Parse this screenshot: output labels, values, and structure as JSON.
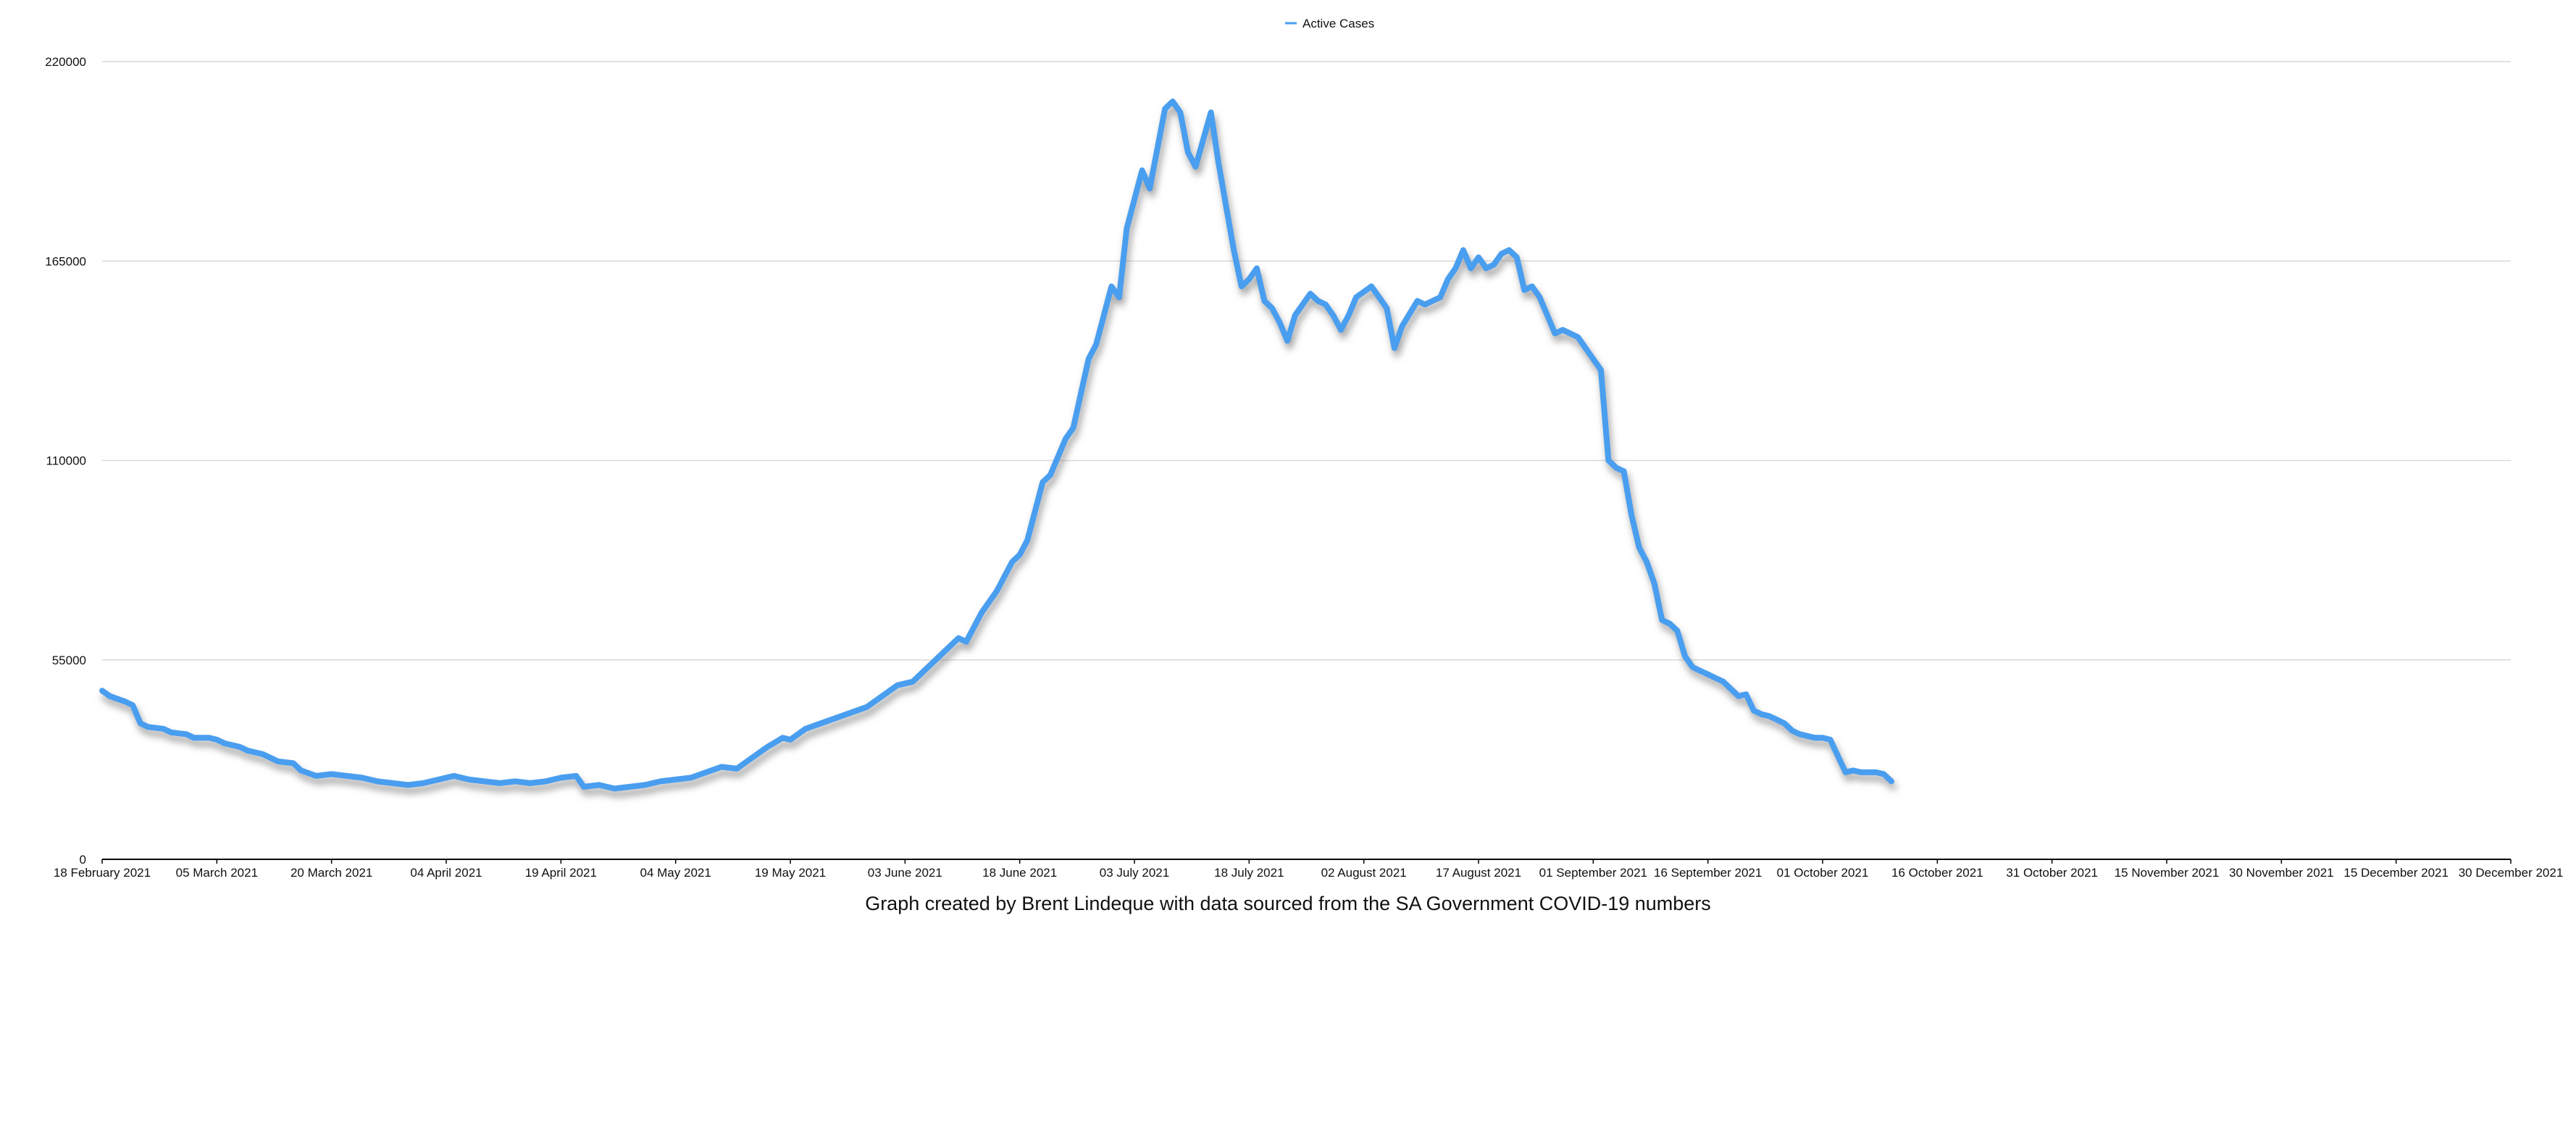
{
  "caption": "Graph created by Brent Lindeque with data sourced from the SA Government COVID-19 numbers",
  "colors": {
    "series": "#4a9eef",
    "grid": "#d9d9d9",
    "axis": "#000000",
    "shadow": "#9a9a9a"
  },
  "chart_data": {
    "type": "line",
    "title": "",
    "xlabel": "",
    "ylabel": "",
    "legend": {
      "position": "top-center",
      "entries": [
        "Active Cases"
      ]
    },
    "grid": true,
    "x_type": "date",
    "xlim": [
      "2021-02-18",
      "2021-12-30"
    ],
    "ylim": [
      0,
      220000
    ],
    "y_ticks": [
      0,
      55000,
      110000,
      165000,
      220000
    ],
    "x_ticks": [
      {
        "date": "2021-02-18",
        "label": "18 February 2021"
      },
      {
        "date": "2021-03-05",
        "label": "05 March 2021"
      },
      {
        "date": "2021-03-20",
        "label": "20 March 2021"
      },
      {
        "date": "2021-04-04",
        "label": "04 April 2021"
      },
      {
        "date": "2021-04-19",
        "label": "19 April 2021"
      },
      {
        "date": "2021-05-04",
        "label": "04 May 2021"
      },
      {
        "date": "2021-05-19",
        "label": "19 May 2021"
      },
      {
        "date": "2021-06-03",
        "label": "03 June 2021"
      },
      {
        "date": "2021-06-18",
        "label": "18 June 2021"
      },
      {
        "date": "2021-07-03",
        "label": "03 July 2021"
      },
      {
        "date": "2021-07-18",
        "label": "18 July 2021"
      },
      {
        "date": "2021-08-02",
        "label": "02 August 2021"
      },
      {
        "date": "2021-08-17",
        "label": "17 August 2021"
      },
      {
        "date": "2021-09-01",
        "label": "01 September 2021"
      },
      {
        "date": "2021-09-16",
        "label": "16 September 2021"
      },
      {
        "date": "2021-10-01",
        "label": "01 October 2021"
      },
      {
        "date": "2021-10-16",
        "label": "16 October 2021"
      },
      {
        "date": "2021-10-31",
        "label": "31 October 2021"
      },
      {
        "date": "2021-11-15",
        "label": "15 November 2021"
      },
      {
        "date": "2021-11-30",
        "label": "30 November 2021"
      },
      {
        "date": "2021-12-15",
        "label": "15 December 2021"
      },
      {
        "date": "2021-12-30",
        "label": "30 December 2021"
      }
    ],
    "series": [
      {
        "name": "Active Cases",
        "points": [
          [
            "2021-02-18",
            46500
          ],
          [
            "2021-02-19",
            45000
          ],
          [
            "2021-02-21",
            43500
          ],
          [
            "2021-02-22",
            42500
          ],
          [
            "2021-02-23",
            37500
          ],
          [
            "2021-02-24",
            36500
          ],
          [
            "2021-02-26",
            36000
          ],
          [
            "2021-02-27",
            35000
          ],
          [
            "2021-03-01",
            34500
          ],
          [
            "2021-03-02",
            33500
          ],
          [
            "2021-03-04",
            33500
          ],
          [
            "2021-03-05",
            33000
          ],
          [
            "2021-03-06",
            32000
          ],
          [
            "2021-03-08",
            31000
          ],
          [
            "2021-03-09",
            30000
          ],
          [
            "2021-03-11",
            29000
          ],
          [
            "2021-03-13",
            27000
          ],
          [
            "2021-03-15",
            26500
          ],
          [
            "2021-03-16",
            24500
          ],
          [
            "2021-03-18",
            23000
          ],
          [
            "2021-03-20",
            23500
          ],
          [
            "2021-03-22",
            23000
          ],
          [
            "2021-03-24",
            22500
          ],
          [
            "2021-03-26",
            21500
          ],
          [
            "2021-03-28",
            21000
          ],
          [
            "2021-03-30",
            20500
          ],
          [
            "2021-04-01",
            21000
          ],
          [
            "2021-04-03",
            22000
          ],
          [
            "2021-04-05",
            23000
          ],
          [
            "2021-04-07",
            22000
          ],
          [
            "2021-04-09",
            21500
          ],
          [
            "2021-04-11",
            21000
          ],
          [
            "2021-04-13",
            21500
          ],
          [
            "2021-04-15",
            21000
          ],
          [
            "2021-04-17",
            21500
          ],
          [
            "2021-04-19",
            22500
          ],
          [
            "2021-04-21",
            23000
          ],
          [
            "2021-04-22",
            20000
          ],
          [
            "2021-04-24",
            20500
          ],
          [
            "2021-04-26",
            19500
          ],
          [
            "2021-04-28",
            20000
          ],
          [
            "2021-04-30",
            20500
          ],
          [
            "2021-05-02",
            21500
          ],
          [
            "2021-05-04",
            22000
          ],
          [
            "2021-05-06",
            22500
          ],
          [
            "2021-05-08",
            24000
          ],
          [
            "2021-05-10",
            25500
          ],
          [
            "2021-05-12",
            25000
          ],
          [
            "2021-05-14",
            28000
          ],
          [
            "2021-05-16",
            31000
          ],
          [
            "2021-05-18",
            33500
          ],
          [
            "2021-05-19",
            33000
          ],
          [
            "2021-05-21",
            36000
          ],
          [
            "2021-05-23",
            37500
          ],
          [
            "2021-05-25",
            39000
          ],
          [
            "2021-05-27",
            40500
          ],
          [
            "2021-05-29",
            42000
          ],
          [
            "2021-05-31",
            45000
          ],
          [
            "2021-06-02",
            48000
          ],
          [
            "2021-06-04",
            49000
          ],
          [
            "2021-06-06",
            53000
          ],
          [
            "2021-06-08",
            57000
          ],
          [
            "2021-06-10",
            61000
          ],
          [
            "2021-06-11",
            60000
          ],
          [
            "2021-06-13",
            68000
          ],
          [
            "2021-06-15",
            74000
          ],
          [
            "2021-06-17",
            82000
          ],
          [
            "2021-06-18",
            84000
          ],
          [
            "2021-06-19",
            88000
          ],
          [
            "2021-06-21",
            104000
          ],
          [
            "2021-06-22",
            106000
          ],
          [
            "2021-06-24",
            116000
          ],
          [
            "2021-06-25",
            119000
          ],
          [
            "2021-06-27",
            138000
          ],
          [
            "2021-06-28",
            142000
          ],
          [
            "2021-06-30",
            158000
          ],
          [
            "2021-07-01",
            155000
          ],
          [
            "2021-07-02",
            174000
          ],
          [
            "2021-07-04",
            190000
          ],
          [
            "2021-07-05",
            185000
          ],
          [
            "2021-07-07",
            207000
          ],
          [
            "2021-07-08",
            209000
          ],
          [
            "2021-07-09",
            206000
          ],
          [
            "2021-07-10",
            195000
          ],
          [
            "2021-07-11",
            191000
          ],
          [
            "2021-07-13",
            206000
          ],
          [
            "2021-07-14",
            192000
          ],
          [
            "2021-07-16",
            168000
          ],
          [
            "2021-07-17",
            158000
          ],
          [
            "2021-07-18",
            160000
          ],
          [
            "2021-07-19",
            163000
          ],
          [
            "2021-07-20",
            154000
          ],
          [
            "2021-07-21",
            152000
          ],
          [
            "2021-07-22",
            148000
          ],
          [
            "2021-07-23",
            143000
          ],
          [
            "2021-07-24",
            150000
          ],
          [
            "2021-07-26",
            156000
          ],
          [
            "2021-07-27",
            154000
          ],
          [
            "2021-07-28",
            153000
          ],
          [
            "2021-07-29",
            150000
          ],
          [
            "2021-07-30",
            146000
          ],
          [
            "2021-07-31",
            150000
          ],
          [
            "2021-08-01",
            155000
          ],
          [
            "2021-08-03",
            158000
          ],
          [
            "2021-08-05",
            152000
          ],
          [
            "2021-08-06",
            141000
          ],
          [
            "2021-08-07",
            147000
          ],
          [
            "2021-08-09",
            154000
          ],
          [
            "2021-08-10",
            153000
          ],
          [
            "2021-08-11",
            154000
          ],
          [
            "2021-08-12",
            155000
          ],
          [
            "2021-08-13",
            160000
          ],
          [
            "2021-08-14",
            163000
          ],
          [
            "2021-08-15",
            168000
          ],
          [
            "2021-08-16",
            163000
          ],
          [
            "2021-08-17",
            166000
          ],
          [
            "2021-08-18",
            163000
          ],
          [
            "2021-08-19",
            164000
          ],
          [
            "2021-08-20",
            167000
          ],
          [
            "2021-08-21",
            168000
          ],
          [
            "2021-08-22",
            166000
          ],
          [
            "2021-08-23",
            157000
          ],
          [
            "2021-08-24",
            158000
          ],
          [
            "2021-08-25",
            155000
          ],
          [
            "2021-08-26",
            150000
          ],
          [
            "2021-08-27",
            145000
          ],
          [
            "2021-08-28",
            146000
          ],
          [
            "2021-08-29",
            145000
          ],
          [
            "2021-08-30",
            144000
          ],
          [
            "2021-08-31",
            141000
          ],
          [
            "2021-09-01",
            138000
          ],
          [
            "2021-09-02",
            135000
          ],
          [
            "2021-09-03",
            110000
          ],
          [
            "2021-09-04",
            108000
          ],
          [
            "2021-09-05",
            107000
          ],
          [
            "2021-09-06",
            95000
          ],
          [
            "2021-09-07",
            86000
          ],
          [
            "2021-09-08",
            82000
          ],
          [
            "2021-09-09",
            76000
          ],
          [
            "2021-09-10",
            66000
          ],
          [
            "2021-09-11",
            65000
          ],
          [
            "2021-09-12",
            63000
          ],
          [
            "2021-09-13",
            56000
          ],
          [
            "2021-09-14",
            53000
          ],
          [
            "2021-09-15",
            52000
          ],
          [
            "2021-09-16",
            51000
          ],
          [
            "2021-09-17",
            50000
          ],
          [
            "2021-09-18",
            49000
          ],
          [
            "2021-09-19",
            47000
          ],
          [
            "2021-09-20",
            45000
          ],
          [
            "2021-09-21",
            45500
          ],
          [
            "2021-09-22",
            41000
          ],
          [
            "2021-09-23",
            40000
          ],
          [
            "2021-09-24",
            39500
          ],
          [
            "2021-09-25",
            38500
          ],
          [
            "2021-09-26",
            37500
          ],
          [
            "2021-09-27",
            35500
          ],
          [
            "2021-09-28",
            34500
          ],
          [
            "2021-09-29",
            34000
          ],
          [
            "2021-09-30",
            33500
          ],
          [
            "2021-10-01",
            33500
          ],
          [
            "2021-10-02",
            33000
          ],
          [
            "2021-10-03",
            28500
          ],
          [
            "2021-10-04",
            24000
          ],
          [
            "2021-10-05",
            24500
          ],
          [
            "2021-10-06",
            24000
          ],
          [
            "2021-10-07",
            24000
          ],
          [
            "2021-10-08",
            24000
          ],
          [
            "2021-10-09",
            23500
          ],
          [
            "2021-10-10",
            21500
          ]
        ]
      }
    ]
  }
}
